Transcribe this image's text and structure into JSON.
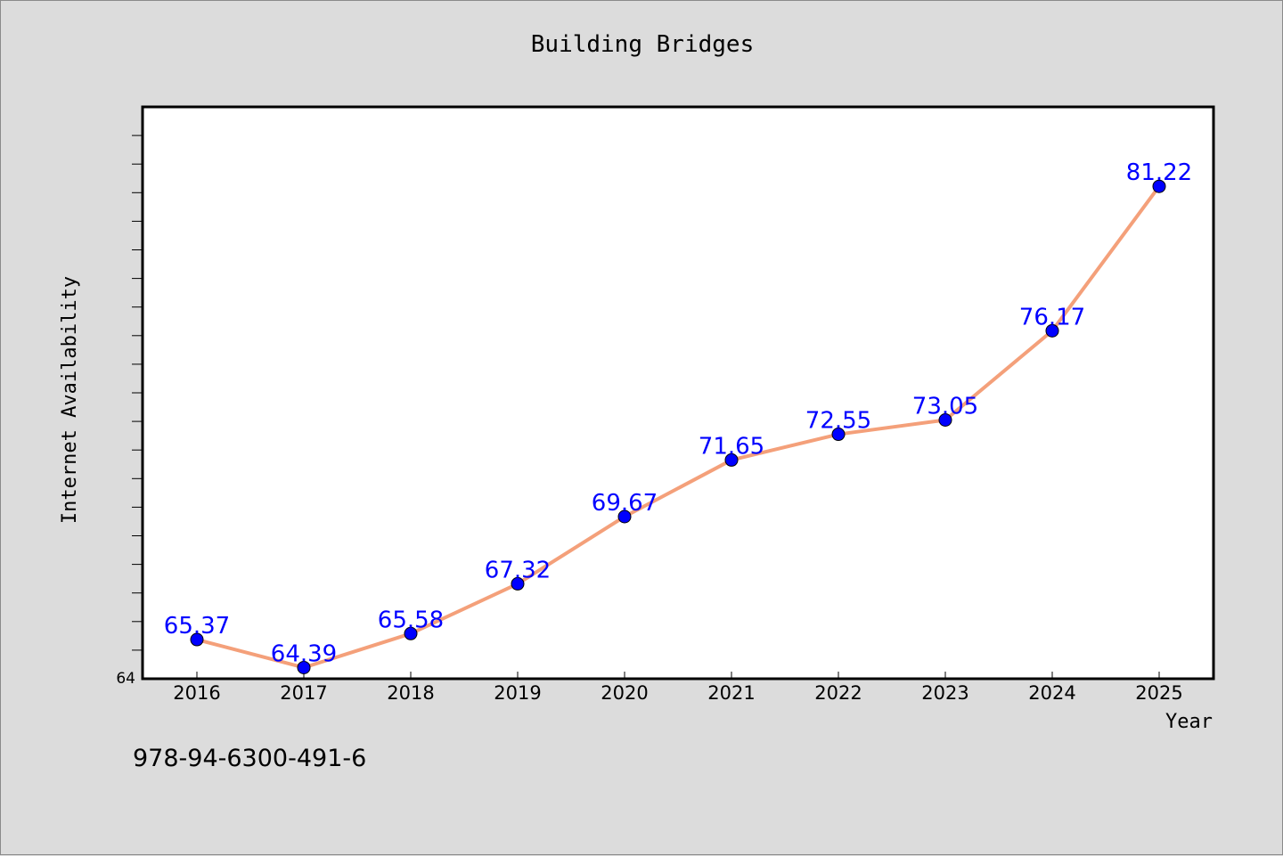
{
  "chart_data": {
    "type": "line",
    "title": "Building Bridges",
    "xlabel": "Year",
    "ylabel": "Internet Availability",
    "categories": [
      "2016",
      "2017",
      "2018",
      "2019",
      "2020",
      "2021",
      "2022",
      "2023",
      "2024",
      "2025"
    ],
    "values": [
      65.37,
      64.39,
      65.58,
      67.32,
      69.67,
      71.65,
      72.55,
      73.05,
      76.17,
      81.22
    ],
    "data_labels": [
      "65.37",
      "64.39",
      "65.58",
      "67.32",
      "69.67",
      "71.65",
      "72.55",
      "73.05",
      "76.17",
      "81.22"
    ],
    "ylim": [
      64,
      84
    ],
    "y_tick_label": "64",
    "grid": false,
    "line_color": "#f4a07a",
    "marker_color": "#0000ff",
    "label_color": "#0000ff"
  },
  "footer": {
    "isbn": "978-94-6300-491-6"
  }
}
